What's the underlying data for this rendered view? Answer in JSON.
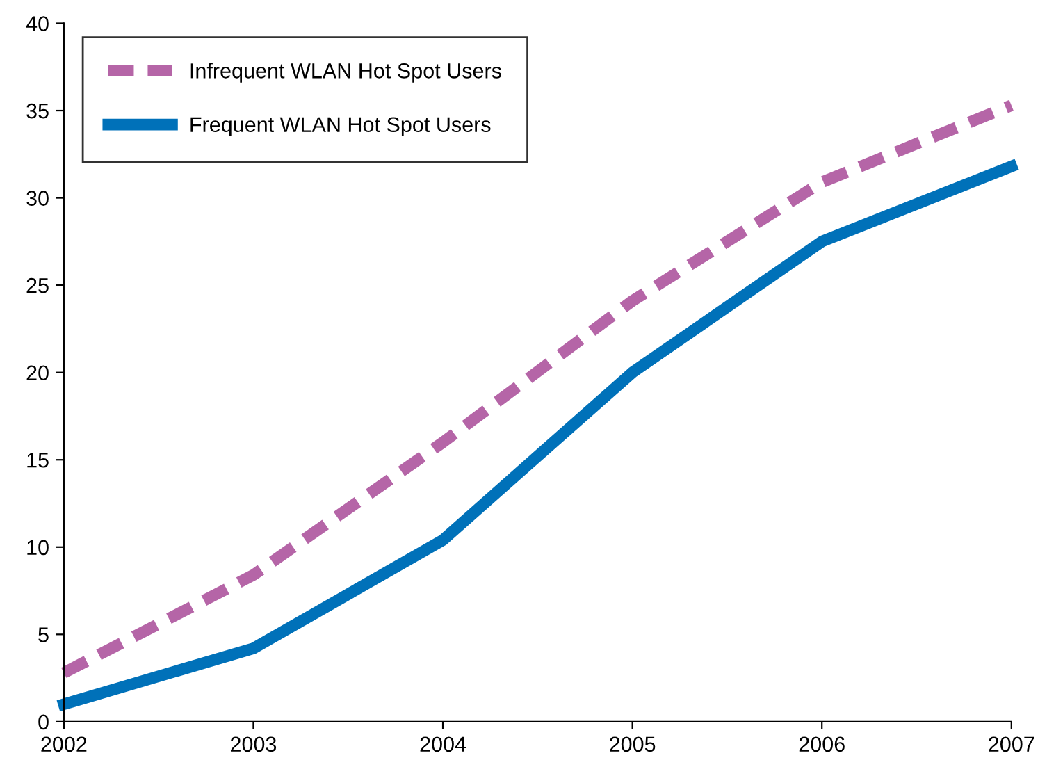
{
  "chart_data": {
    "type": "line",
    "x": [
      2002,
      2003,
      2004,
      2005,
      2006,
      2007
    ],
    "series": [
      {
        "name": "Infrequent WLAN Hot Spot Users",
        "color": "#b565a7",
        "line_style": "dashed",
        "values": [
          2.8,
          8.4,
          16.0,
          24.1,
          30.9,
          35.3
        ]
      },
      {
        "name": "Frequent WLAN Hot Spot Users",
        "color": "#0071b9",
        "line_style": "solid",
        "values": [
          1.0,
          4.2,
          10.4,
          20.0,
          27.5,
          31.8
        ]
      }
    ],
    "xlim": [
      2002,
      2007
    ],
    "xticks": [
      2002,
      2003,
      2004,
      2005,
      2006,
      2007
    ],
    "ylim": [
      0,
      40
    ],
    "yticks": [
      0,
      5,
      10,
      15,
      20,
      25,
      30,
      35,
      40
    ],
    "grid": false,
    "legend": "top left",
    "marker": "none"
  }
}
